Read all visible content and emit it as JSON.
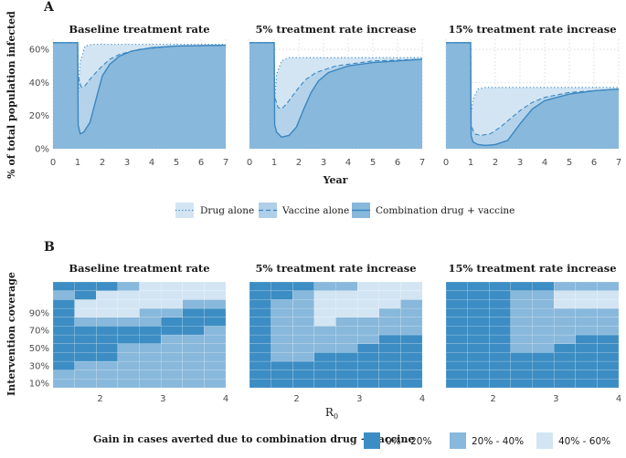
{
  "panel_a": {
    "letter": "A"
  },
  "panel_b": {
    "letter": "B"
  },
  "colors": {
    "dark": "#3c8dc3",
    "mid": "#88b8db",
    "light": "#d3e5f3",
    "line": "#3b86c0",
    "grid": "#d4d4d4"
  },
  "chart_data": [
    {
      "type": "area",
      "ylabel": "% of total population infected",
      "xlabel": "Year",
      "xlim": [
        0,
        7
      ],
      "ylim": [
        0,
        65
      ],
      "xticks": [
        0,
        1,
        2,
        3,
        4,
        5,
        6,
        7
      ],
      "yticks": [
        0,
        20,
        40,
        60
      ],
      "ytick_labels": [
        "0%",
        "20%",
        "40%",
        "60%"
      ],
      "legend": [
        "Drug alone",
        "Vaccine alone",
        "Combination drug + vaccine"
      ],
      "panels": [
        {
          "title": "Baseline treatment rate",
          "drug_alone": {
            "x": [
              0,
              1,
              1.01,
              1.1,
              1.3,
              1.6,
              2,
              7
            ],
            "y": [
              64,
              64,
              30,
              52,
              62,
              63,
              63,
              63
            ]
          },
          "vaccine_alone": {
            "x": [
              0,
              1,
              1.01,
              1.15,
              1.3,
              1.5,
              1.8,
              2.0,
              2.3,
              2.7,
              3.5,
              5,
              7
            ],
            "y": [
              64,
              64,
              44,
              37,
              38,
              42,
              47,
              50,
              54,
              57,
              60,
              62,
              62.5
            ]
          },
          "combination": {
            "x": [
              0,
              1,
              1.01,
              1.1,
              1.25,
              1.5,
              1.8,
              2.0,
              2.3,
              2.7,
              3.2,
              4,
              5,
              7
            ],
            "y": [
              64,
              64,
              15,
              9,
              10,
              16,
              33,
              44,
              51,
              56,
              59,
              61,
              62,
              62.5
            ]
          }
        },
        {
          "title": "5% treatment rate increase",
          "drug_alone": {
            "x": [
              0,
              1,
              1.01,
              1.1,
              1.3,
              1.6,
              2,
              7
            ],
            "y": [
              64,
              64,
              28,
              45,
              53,
              55,
              55,
              55
            ]
          },
          "vaccine_alone": {
            "x": [
              0,
              1,
              1.01,
              1.15,
              1.3,
              1.5,
              1.8,
              2.0,
              2.3,
              2.7,
              3.5,
              5,
              7
            ],
            "y": [
              64,
              64,
              32,
              25,
              24,
              27,
              33,
              37,
              42,
              46,
              50,
              53,
              54
            ]
          },
          "combination": {
            "x": [
              0,
              1,
              1.01,
              1.1,
              1.3,
              1.6,
              1.9,
              2.2,
              2.5,
              2.8,
              3.2,
              4,
              5,
              7
            ],
            "y": [
              64,
              64,
              15,
              10,
              7,
              8,
              13,
              24,
              34,
              41,
              46,
              50,
              52,
              54
            ]
          }
        },
        {
          "title": "15% treatment rate increase",
          "drug_alone": {
            "x": [
              0,
              1,
              1.01,
              1.1,
              1.3,
              1.6,
              2,
              7
            ],
            "y": [
              64,
              64,
              20,
              30,
              36,
              37,
              37,
              37
            ]
          },
          "vaccine_alone": {
            "x": [
              0,
              1,
              1.01,
              1.15,
              1.4,
              1.8,
              2.2,
              2.6,
              3.0,
              3.5,
              4,
              5,
              6,
              7
            ],
            "y": [
              64,
              64,
              15,
              9,
              8,
              9,
              13,
              18,
              23,
              28,
              31,
              34,
              35,
              36
            ]
          },
          "combination": {
            "x": [
              0,
              1,
              1.01,
              1.1,
              1.3,
              1.6,
              2.0,
              2.5,
              3.0,
              3.5,
              4,
              5,
              6,
              7
            ],
            "y": [
              64,
              64,
              8,
              4,
              2.5,
              2,
              2.5,
              5,
              15,
              24,
              29,
              33,
              35,
              36
            ]
          }
        }
      ]
    },
    {
      "type": "heatmap",
      "ylabel": "Intervention coverage",
      "xlabel": "R",
      "xlabel_subscript": "0",
      "xlim": [
        1.25,
        4
      ],
      "xticks": [
        2,
        3,
        4
      ],
      "yticks": [
        "10%",
        "30%",
        "50%",
        "70%",
        "90%"
      ],
      "rows": 12,
      "cols": 8,
      "legend_title": "Gain in cases averted due to combination drug + vaccine",
      "legend": [
        "0% - 20%",
        "20% - 40%",
        "40% - 60%"
      ],
      "panels": [
        {
          "title": "Baseline treatment rate",
          "grid": [
            [
              1,
              1,
              1,
              1,
              1,
              1,
              1,
              1
            ],
            [
              1,
              1,
              1,
              1,
              1,
              1,
              1,
              1
            ],
            [
              0,
              1,
              1,
              1,
              1,
              1,
              1,
              1
            ],
            [
              0,
              0,
              0,
              1,
              1,
              1,
              1,
              1
            ],
            [
              0,
              0,
              0,
              1,
              1,
              1,
              1,
              1
            ],
            [
              0,
              0,
              0,
              0,
              0,
              1,
              1,
              1
            ],
            [
              0,
              0,
              0,
              0,
              0,
              0,
              0,
              1
            ],
            [
              0,
              1,
              1,
              1,
              1,
              0,
              0,
              0
            ],
            [
              0,
              2,
              2,
              2,
              1,
              1,
              0,
              0
            ],
            [
              0,
              2,
              2,
              2,
              2,
              2,
              1,
              1
            ],
            [
              1,
              0,
              2,
              2,
              2,
              2,
              2,
              2
            ],
            [
              0,
              0,
              0,
              1,
              2,
              2,
              2,
              2
            ]
          ]
        },
        {
          "title": "5% treatment rate increase",
          "grid": [
            [
              0,
              0,
              0,
              0,
              0,
              0,
              0,
              0
            ],
            [
              0,
              0,
              0,
              0,
              0,
              0,
              0,
              0
            ],
            [
              0,
              0,
              0,
              0,
              0,
              0,
              0,
              0
            ],
            [
              0,
              1,
              1,
              0,
              0,
              0,
              0,
              0
            ],
            [
              0,
              1,
              1,
              1,
              1,
              0,
              0,
              0
            ],
            [
              0,
              1,
              1,
              1,
              1,
              1,
              0,
              0
            ],
            [
              0,
              1,
              1,
              1,
              1,
              1,
              1,
              1
            ],
            [
              0,
              1,
              1,
              2,
              1,
              1,
              1,
              1
            ],
            [
              0,
              1,
              1,
              2,
              2,
              2,
              1,
              1
            ],
            [
              0,
              1,
              1,
              2,
              2,
              2,
              2,
              1
            ],
            [
              0,
              0,
              1,
              2,
              2,
              2,
              2,
              2
            ],
            [
              0,
              0,
              0,
              1,
              1,
              2,
              2,
              2
            ]
          ]
        },
        {
          "title": "15% treatment rate increase",
          "grid": [
            [
              0,
              0,
              0,
              0,
              0,
              0,
              0,
              0
            ],
            [
              0,
              0,
              0,
              0,
              0,
              0,
              0,
              0
            ],
            [
              0,
              0,
              0,
              0,
              0,
              0,
              0,
              0
            ],
            [
              0,
              0,
              0,
              0,
              0,
              0,
              0,
              0
            ],
            [
              0,
              0,
              0,
              1,
              1,
              0,
              0,
              0
            ],
            [
              0,
              0,
              0,
              1,
              1,
              1,
              0,
              0
            ],
            [
              0,
              0,
              0,
              1,
              1,
              1,
              1,
              1
            ],
            [
              0,
              0,
              0,
              1,
              1,
              1,
              1,
              1
            ],
            [
              0,
              0,
              0,
              1,
              1,
              1,
              1,
              1
            ],
            [
              0,
              0,
              0,
              1,
              1,
              2,
              2,
              2
            ],
            [
              0,
              0,
              0,
              1,
              1,
              2,
              2,
              2
            ],
            [
              0,
              0,
              0,
              0,
              0,
              1,
              1,
              1
            ]
          ]
        }
      ]
    }
  ]
}
